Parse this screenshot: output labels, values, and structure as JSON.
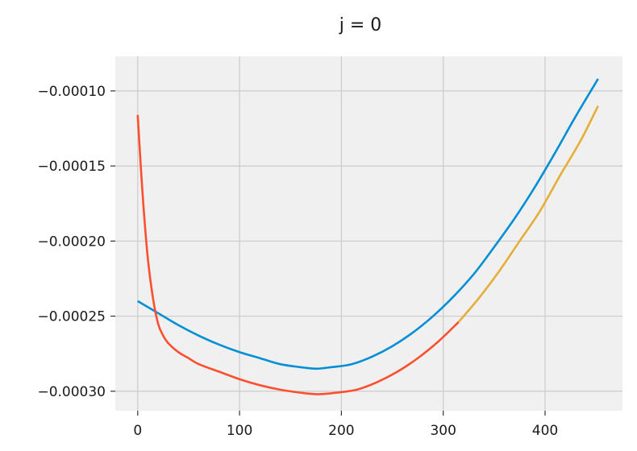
{
  "chart_data": {
    "type": "line",
    "title": "j = 0",
    "xlabel": "",
    "ylabel": "",
    "xlim": [
      -22,
      476
    ],
    "ylim": [
      -0.000313,
      -7.7e-05
    ],
    "x_ticks": [
      0,
      100,
      200,
      300,
      400
    ],
    "x_tick_labels": [
      "0",
      "100",
      "200",
      "300",
      "400"
    ],
    "y_ticks": [
      -0.0001,
      -0.00015,
      -0.0002,
      -0.00025,
      -0.0003
    ],
    "y_tick_labels": [
      "−0.00010",
      "−0.00015",
      "−0.00020",
      "−0.00025",
      "−0.00030"
    ],
    "grid": true,
    "background_color": "#f0f0f0",
    "series": [
      {
        "color": "#008fd5",
        "x": [
          0,
          20,
          40,
          60,
          80,
          100,
          120,
          140,
          160,
          175,
          190,
          210,
          230,
          250,
          270,
          290,
          310,
          330,
          350,
          370,
          390,
          410,
          430,
          452
        ],
        "y": [
          -0.00024,
          -0.000248,
          -0.000256,
          -0.000263,
          -0.000269,
          -0.000274,
          -0.000278,
          -0.000282,
          -0.000284,
          -0.000285,
          -0.000284,
          -0.000282,
          -0.000277,
          -0.00027,
          -0.000261,
          -0.00025,
          -0.000237,
          -0.000222,
          -0.000204,
          -0.000185,
          -0.000164,
          -0.000141,
          -0.000117,
          -9.2e-05
        ]
      },
      {
        "color": "#fc4f30",
        "x": [
          0,
          3,
          6,
          10,
          15,
          20,
          25,
          30,
          40,
          50,
          60,
          80,
          100,
          120,
          140,
          160,
          177,
          195,
          215,
          235,
          255,
          275,
          295,
          315
        ],
        "y": [
          -0.000116,
          -0.00015,
          -0.00018,
          -0.000212,
          -0.000238,
          -0.000255,
          -0.000263,
          -0.000268,
          -0.000274,
          -0.000278,
          -0.000282,
          -0.000287,
          -0.000292,
          -0.000296,
          -0.000299,
          -0.000301,
          -0.000302,
          -0.000301,
          -0.000299,
          -0.000294,
          -0.000287,
          -0.000278,
          -0.000267,
          -0.000254
        ]
      },
      {
        "color": "#e5ae38",
        "x": [
          315,
          335,
          355,
          375,
          395,
          415,
          435,
          452
        ],
        "y": [
          -0.000254,
          -0.000238,
          -0.00022,
          -0.0002,
          -0.00018,
          -0.000156,
          -0.000133,
          -0.00011
        ]
      }
    ]
  }
}
